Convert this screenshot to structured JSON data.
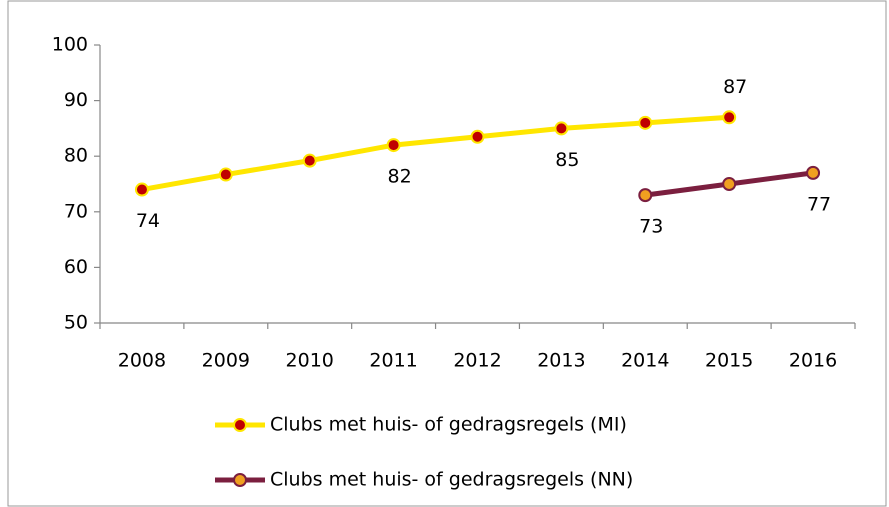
{
  "chart_data": {
    "type": "line",
    "categories": [
      "2008",
      "2009",
      "2010",
      "2011",
      "2012",
      "2013",
      "2014",
      "2015",
      "2016"
    ],
    "series": [
      {
        "name": "Clubs met huis- of gedragsregels (MI)",
        "color": "#FFE600",
        "marker_color": "#C00000",
        "values": [
          74,
          76.7,
          79.2,
          82,
          83.5,
          85,
          86,
          87,
          null
        ],
        "value_labels": [
          "74",
          null,
          null,
          "82",
          null,
          "85",
          null,
          "87",
          null
        ]
      },
      {
        "name": "Clubs met huis- of gedragsregels (NN)",
        "color": "#7B1F3F",
        "marker_color": "#F0A020",
        "values": [
          null,
          null,
          null,
          null,
          null,
          null,
          73,
          75,
          77
        ],
        "value_labels": [
          null,
          null,
          null,
          null,
          null,
          null,
          "73",
          null,
          "77"
        ]
      }
    ],
    "ylim": [
      50,
      100
    ],
    "yticks": [
      50,
      60,
      70,
      80,
      90,
      100
    ],
    "grid": false
  }
}
